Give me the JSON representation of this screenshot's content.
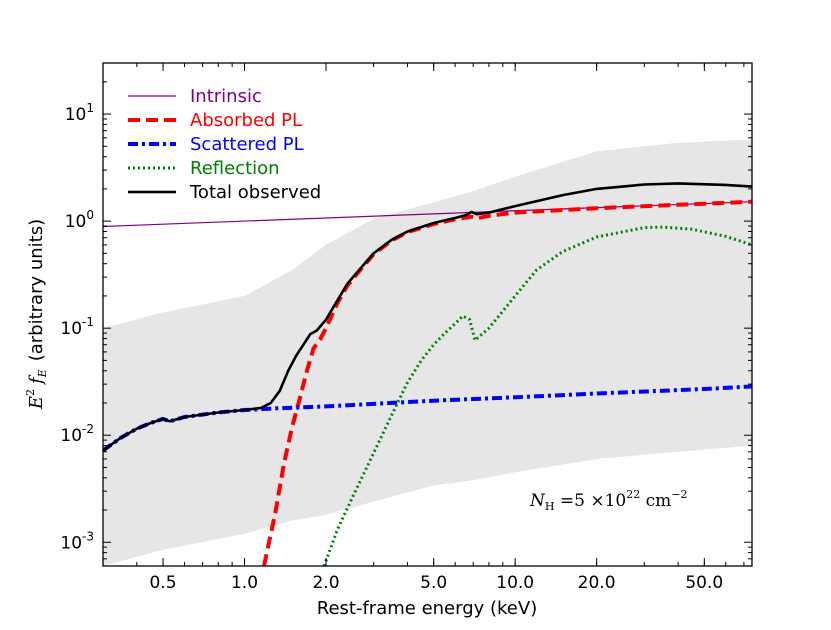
{
  "chart_data": {
    "type": "line",
    "xlabel": "Rest-frame energy (keV)",
    "ylabel_main": "E",
    "ylabel_sup": "2",
    "ylabel_f": "f",
    "ylabel_sub": "E",
    "ylabel_units": "(arbitrary units)",
    "x_scale": "log",
    "y_scale": "log",
    "xlim": [
      0.3,
      75
    ],
    "ylim": [
      0.0006,
      30
    ],
    "x_ticks": [
      {
        "value": 0.5,
        "label": "0.5"
      },
      {
        "value": 1.0,
        "label": "1.0"
      },
      {
        "value": 2.0,
        "label": "2.0"
      },
      {
        "value": 5.0,
        "label": "5.0"
      },
      {
        "value": 10.0,
        "label": "10.0"
      },
      {
        "value": 20.0,
        "label": "20.0"
      },
      {
        "value": 50.0,
        "label": "50.0"
      }
    ],
    "y_ticks": [
      {
        "value": 0.001,
        "base": "10",
        "exp": "-3"
      },
      {
        "value": 0.01,
        "base": "10",
        "exp": "-2"
      },
      {
        "value": 0.1,
        "base": "10",
        "exp": "-1"
      },
      {
        "value": 1,
        "base": "10",
        "exp": "0"
      },
      {
        "value": 10,
        "base": "10",
        "exp": "1"
      }
    ],
    "legend_placement": "top-left",
    "grid": false,
    "annotation": {
      "prefix": "N",
      "sub": "H",
      "mid": " =5 ×10",
      "sup1": "22",
      "unit": " cm",
      "sup2": "−2"
    },
    "band": {
      "color": "#e6e6e6",
      "upper": [
        [
          0.3,
          0.1
        ],
        [
          0.5,
          0.14
        ],
        [
          1.0,
          0.2
        ],
        [
          1.5,
          0.35
        ],
        [
          2.0,
          0.6
        ],
        [
          3.0,
          1.05
        ],
        [
          5.0,
          1.5
        ],
        [
          7.0,
          1.9
        ],
        [
          10.0,
          2.6
        ],
        [
          20.0,
          4.5
        ],
        [
          40.0,
          5.4
        ],
        [
          75.0,
          5.8
        ]
      ],
      "lower": [
        [
          0.3,
          0.0006
        ],
        [
          0.5,
          0.00085
        ],
        [
          1.0,
          0.0012
        ],
        [
          1.5,
          0.0016
        ],
        [
          2.0,
          0.0018
        ],
        [
          3.0,
          0.0024
        ],
        [
          5.0,
          0.0034
        ],
        [
          7.0,
          0.0038
        ],
        [
          10.0,
          0.0045
        ],
        [
          20.0,
          0.006
        ],
        [
          40.0,
          0.007
        ],
        [
          75.0,
          0.008
        ]
      ]
    },
    "series": [
      {
        "name": "Intrinsic",
        "color": "#800080",
        "dash": "solid",
        "width": 1.2,
        "points": [
          [
            0.3,
            0.89
          ],
          [
            75.0,
            1.52
          ]
        ]
      },
      {
        "name": "Absorbed PL",
        "color": "#ff0000",
        "dash": "dashed",
        "width": 4,
        "points": [
          [
            1.18,
            0.0006
          ],
          [
            1.3,
            0.0019
          ],
          [
            1.4,
            0.0055
          ],
          [
            1.5,
            0.012
          ],
          [
            1.6,
            0.022
          ],
          [
            1.7,
            0.04
          ],
          [
            1.8,
            0.065
          ],
          [
            1.9,
            0.078
          ],
          [
            2.0,
            0.1
          ],
          [
            2.2,
            0.17
          ],
          [
            2.4,
            0.25
          ],
          [
            2.6,
            0.32
          ],
          [
            2.8,
            0.4
          ],
          [
            3.0,
            0.49
          ],
          [
            3.5,
            0.66
          ],
          [
            4.0,
            0.79
          ],
          [
            5.0,
            0.94
          ],
          [
            6.0,
            1.04
          ],
          [
            6.9,
            1.1
          ],
          [
            7.2,
            1.06
          ],
          [
            8.0,
            1.12
          ],
          [
            10.0,
            1.2
          ],
          [
            20.0,
            1.32
          ],
          [
            40.0,
            1.42
          ],
          [
            75.0,
            1.52
          ]
        ]
      },
      {
        "name": "Scattered PL",
        "color": "#0000ff",
        "dash": "dashdot",
        "width": 4,
        "points": [
          [
            0.3,
            0.0072
          ],
          [
            0.35,
            0.0095
          ],
          [
            0.4,
            0.0115
          ],
          [
            0.45,
            0.013
          ],
          [
            0.5,
            0.0142
          ],
          [
            0.53,
            0.0135
          ],
          [
            0.6,
            0.0148
          ],
          [
            0.8,
            0.0163
          ],
          [
            1.0,
            0.0172
          ],
          [
            1.3,
            0.0178
          ],
          [
            2.0,
            0.0186
          ],
          [
            5.0,
            0.021
          ],
          [
            10.0,
            0.0226
          ],
          [
            20.0,
            0.0245
          ],
          [
            50.0,
            0.027
          ],
          [
            75.0,
            0.0285
          ]
        ]
      },
      {
        "name": "Reflection",
        "color": "#008000",
        "dash": "dotted",
        "width": 3,
        "points": [
          [
            1.97,
            0.0006
          ],
          [
            2.2,
            0.0013
          ],
          [
            2.5,
            0.0026
          ],
          [
            3.0,
            0.0068
          ],
          [
            3.5,
            0.0155
          ],
          [
            4.0,
            0.031
          ],
          [
            4.5,
            0.05
          ],
          [
            5.0,
            0.07
          ],
          [
            5.5,
            0.09
          ],
          [
            6.0,
            0.11
          ],
          [
            6.4,
            0.13
          ],
          [
            6.8,
            0.12
          ],
          [
            7.1,
            0.077
          ],
          [
            8.0,
            0.1
          ],
          [
            10.0,
            0.2
          ],
          [
            12.0,
            0.35
          ],
          [
            15.0,
            0.52
          ],
          [
            20.0,
            0.71
          ],
          [
            30.0,
            0.87
          ],
          [
            35.0,
            0.88
          ],
          [
            45.0,
            0.84
          ],
          [
            60.0,
            0.72
          ],
          [
            75.0,
            0.6
          ]
        ]
      },
      {
        "name": "Total observed",
        "color": "#000000",
        "dash": "solid",
        "width": 2.6,
        "points": [
          [
            0.3,
            0.0072
          ],
          [
            0.35,
            0.0095
          ],
          [
            0.4,
            0.0115
          ],
          [
            0.45,
            0.013
          ],
          [
            0.5,
            0.0142
          ],
          [
            0.53,
            0.0135
          ],
          [
            0.6,
            0.0148
          ],
          [
            0.8,
            0.0163
          ],
          [
            1.0,
            0.0172
          ],
          [
            1.15,
            0.018
          ],
          [
            1.25,
            0.02
          ],
          [
            1.35,
            0.026
          ],
          [
            1.45,
            0.04
          ],
          [
            1.55,
            0.055
          ],
          [
            1.65,
            0.07
          ],
          [
            1.75,
            0.088
          ],
          [
            1.85,
            0.095
          ],
          [
            2.0,
            0.12
          ],
          [
            2.2,
            0.18
          ],
          [
            2.4,
            0.26
          ],
          [
            2.6,
            0.33
          ],
          [
            2.8,
            0.41
          ],
          [
            3.0,
            0.5
          ],
          [
            3.5,
            0.67
          ],
          [
            4.0,
            0.8
          ],
          [
            5.0,
            0.96
          ],
          [
            6.0,
            1.07
          ],
          [
            6.6,
            1.14
          ],
          [
            6.9,
            1.22
          ],
          [
            7.2,
            1.16
          ],
          [
            8.0,
            1.2
          ],
          [
            10.0,
            1.38
          ],
          [
            15.0,
            1.75
          ],
          [
            20.0,
            2.0
          ],
          [
            30.0,
            2.2
          ],
          [
            40.0,
            2.25
          ],
          [
            60.0,
            2.18
          ],
          [
            75.0,
            2.1
          ]
        ]
      }
    ]
  }
}
